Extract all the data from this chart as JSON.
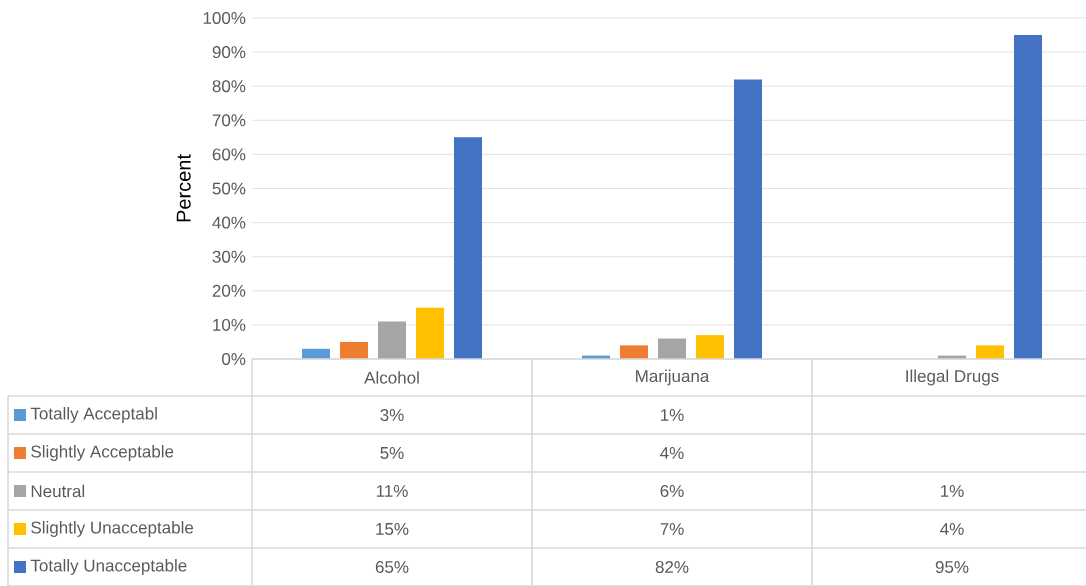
{
  "chart_data": {
    "type": "bar",
    "ylabel": "Percent",
    "categories": [
      "Alcohol",
      "Marijuana",
      "Illegal Drugs"
    ],
    "series": [
      {
        "name": "Totally Acceptabl",
        "color": "#5b9bd5",
        "values": [
          3,
          1,
          null
        ],
        "value_labels": [
          "3%",
          "1%",
          null
        ]
      },
      {
        "name": "Slightly Acceptable",
        "color": "#ed7d31",
        "values": [
          5,
          4,
          null
        ],
        "value_labels": [
          "5%",
          "4%",
          null
        ]
      },
      {
        "name": "Neutral",
        "color": "#a5a5a5",
        "values": [
          11,
          6,
          1
        ],
        "value_labels": [
          "11%",
          "6%",
          "1%"
        ]
      },
      {
        "name": "Slightly Unacceptable",
        "color": "#ffc000",
        "values": [
          15,
          7,
          4
        ],
        "value_labels": [
          "15%",
          "7%",
          "4%"
        ]
      },
      {
        "name": "Totally Unacceptable",
        "color": "#4472c4",
        "values": [
          65,
          82,
          95
        ],
        "value_labels": [
          "65%",
          "82%",
          "95%"
        ]
      }
    ],
    "ylim": [
      0,
      100
    ],
    "yticks": [
      {
        "value": 0,
        "label": "0%"
      },
      {
        "value": 10,
        "label": "10%"
      },
      {
        "value": 20,
        "label": "20%"
      },
      {
        "value": 30,
        "label": "30%"
      },
      {
        "value": 40,
        "label": "40%"
      },
      {
        "value": 50,
        "label": "50%"
      },
      {
        "value": 60,
        "label": "60%"
      },
      {
        "value": 70,
        "label": "70%"
      },
      {
        "value": 80,
        "label": "80%"
      },
      {
        "value": 90,
        "label": "90%"
      },
      {
        "value": 100,
        "label": "100%"
      }
    ],
    "grid": "y",
    "legend": "bottom"
  }
}
